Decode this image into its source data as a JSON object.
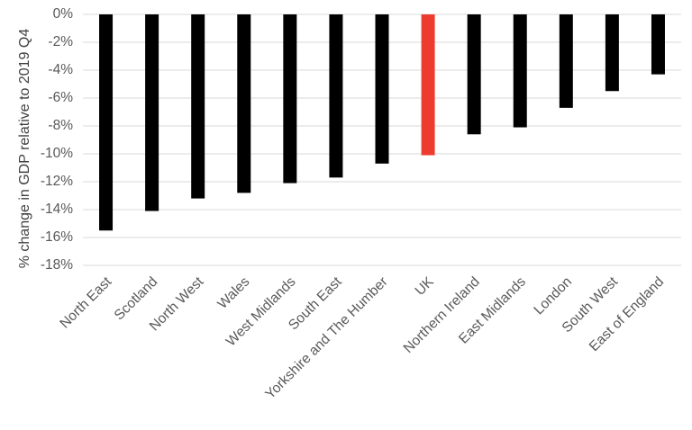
{
  "chart_data": {
    "type": "bar",
    "title": "",
    "xlabel": "",
    "ylabel": "% change in GDP relative to 2019 Q4",
    "categories": [
      "North East",
      "Scotland",
      "North West",
      "Wales",
      "West Midlands",
      "South East",
      "Yorkshire and The Humber",
      "UK",
      "Northern Ireland",
      "East Midlands",
      "London",
      "South West",
      "East of England"
    ],
    "values": [
      -15.5,
      -14.1,
      -13.2,
      -12.8,
      -12.1,
      -11.7,
      -10.7,
      -10.1,
      -8.6,
      -8.1,
      -6.7,
      -5.5,
      -4.3
    ],
    "highlight": "UK",
    "ylim": [
      -18,
      0
    ],
    "yticks": [
      0,
      -2,
      -4,
      -6,
      -8,
      -10,
      -12,
      -14,
      -16,
      -18
    ],
    "ytick_labels": [
      "0%",
      "-2%",
      "-4%",
      "-6%",
      "-8%",
      "-10%",
      "-12%",
      "-14%",
      "-16%",
      "-18%"
    ],
    "grid": true,
    "legend": "none",
    "colors": {
      "bar": "#000000",
      "highlight": "#ee3b2f",
      "grid": "#d9d9d9",
      "text": "#595959"
    }
  }
}
